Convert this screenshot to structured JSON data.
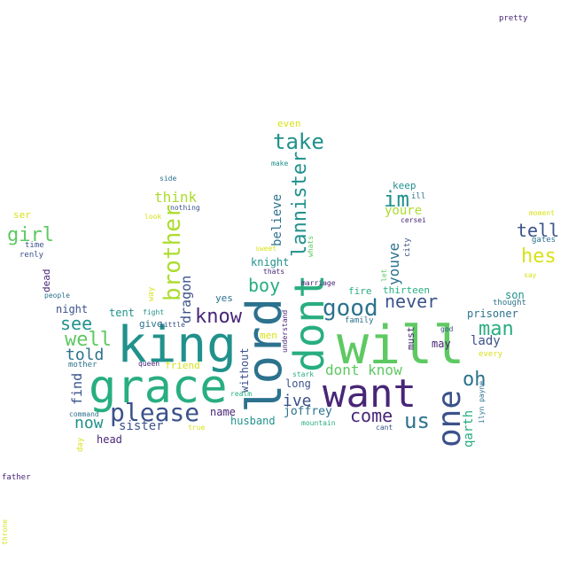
{
  "colors": {
    "dark_purple": "#482677",
    "indigo": "#3b528b",
    "blue": "#2c728e",
    "teal": "#21918c",
    "green_teal": "#28ae80",
    "green": "#5ec962",
    "lime": "#addc30",
    "yellow": "#d8e219"
  },
  "words": [
    {
      "text": "will",
      "color": "#5ec962"
    },
    {
      "text": "king",
      "color": "#21918c"
    },
    {
      "text": "grace",
      "color": "#28ae80"
    },
    {
      "text": "lord",
      "color": "#2c728e"
    },
    {
      "text": "dont",
      "color": "#28ae80"
    },
    {
      "text": "want",
      "color": "#482677"
    },
    {
      "text": "one",
      "color": "#3b528b"
    },
    {
      "text": "please",
      "color": "#3b528b"
    },
    {
      "text": "take",
      "color": "#21918c"
    },
    {
      "text": "lannister",
      "color": "#21918c"
    },
    {
      "text": "brother",
      "color": "#addc30"
    },
    {
      "text": "good",
      "color": "#2c728e"
    },
    {
      "text": "know",
      "color": "#482677"
    },
    {
      "text": "man",
      "color": "#28ae80"
    },
    {
      "text": "hes",
      "color": "#d8e219"
    },
    {
      "text": "tell",
      "color": "#3b528b"
    },
    {
      "text": "girl",
      "color": "#5ec962"
    },
    {
      "text": "im",
      "color": "#21918c"
    },
    {
      "text": "well",
      "color": "#5ec962"
    },
    {
      "text": "see",
      "color": "#21918c"
    },
    {
      "text": "oh",
      "color": "#2c728e"
    },
    {
      "text": "us",
      "color": "#2c728e"
    },
    {
      "text": "never",
      "color": "#3b528b"
    },
    {
      "text": "come",
      "color": "#482677"
    },
    {
      "text": "now",
      "color": "#21918c"
    },
    {
      "text": "told",
      "color": "#2c728e"
    },
    {
      "text": "boy",
      "color": "#28ae80"
    },
    {
      "text": "ive",
      "color": "#3b528b"
    },
    {
      "text": "youve",
      "color": "#2c728e"
    },
    {
      "text": "dont know",
      "color": "#5ec962"
    },
    {
      "text": "think",
      "color": "#addc30"
    },
    {
      "text": "dragon",
      "color": "#3b528b"
    },
    {
      "text": "youre",
      "color": "#addc30"
    },
    {
      "text": "sister",
      "color": "#3b528b"
    },
    {
      "text": "find",
      "color": "#3b528b"
    },
    {
      "text": "qarth",
      "color": "#28ae80"
    },
    {
      "text": "lady",
      "color": "#3b528b"
    },
    {
      "text": "believe",
      "color": "#2c728e"
    },
    {
      "text": "joffrey",
      "color": "#2c728e"
    },
    {
      "text": "knight",
      "color": "#21918c"
    },
    {
      "text": "prisoner",
      "color": "#2c728e"
    },
    {
      "text": "without",
      "color": "#3b528b"
    },
    {
      "text": "name",
      "color": "#482677"
    },
    {
      "text": "long",
      "color": "#3b528b"
    },
    {
      "text": "son",
      "color": "#21918c"
    },
    {
      "text": "may",
      "color": "#482677"
    },
    {
      "text": "husband",
      "color": "#21918c"
    },
    {
      "text": "head",
      "color": "#482677"
    },
    {
      "text": "tent",
      "color": "#21918c"
    },
    {
      "text": "night",
      "color": "#3b528b"
    },
    {
      "text": "keep",
      "color": "#21918c"
    },
    {
      "text": "even",
      "color": "#d8e219"
    },
    {
      "text": "ser",
      "color": "#d8e219"
    },
    {
      "text": "yes",
      "color": "#2c728e"
    },
    {
      "text": "fire",
      "color": "#28ae80"
    },
    {
      "text": "thirteen",
      "color": "#28ae80"
    },
    {
      "text": "friend",
      "color": "#d8e219"
    },
    {
      "text": "men",
      "color": "#d8e219"
    },
    {
      "text": "must",
      "color": "#482677"
    },
    {
      "text": "give",
      "color": "#2c728e"
    },
    {
      "text": "dead",
      "color": "#482677"
    },
    {
      "text": "gates",
      "color": "#2c728e"
    },
    {
      "text": "thought",
      "color": "#2c728e"
    },
    {
      "text": "family",
      "color": "#2c728e"
    },
    {
      "text": "renly",
      "color": "#3b528b"
    },
    {
      "text": "time",
      "color": "#3b528b"
    },
    {
      "text": "every",
      "color": "#d8e219"
    },
    {
      "text": "mother",
      "color": "#2c728e"
    },
    {
      "text": "day",
      "color": "#d8e219"
    },
    {
      "text": "city",
      "color": "#3b528b"
    },
    {
      "text": "ill",
      "color": "#2c728e"
    },
    {
      "text": "way",
      "color": "#d8e219"
    },
    {
      "text": "fight",
      "color": "#21918c"
    },
    {
      "text": "little",
      "color": "#3b528b"
    },
    {
      "text": "understand",
      "color": "#482677"
    },
    {
      "text": "stark",
      "color": "#28ae80"
    },
    {
      "text": "marriage",
      "color": "#482677"
    },
    {
      "text": "whats",
      "color": "#5ec962"
    },
    {
      "text": "let",
      "color": "#5ec962"
    },
    {
      "text": "cersei",
      "color": "#482677"
    },
    {
      "text": "side",
      "color": "#2c728e"
    },
    {
      "text": "nothing",
      "color": "#3b528b"
    },
    {
      "text": "look",
      "color": "#d8e219"
    },
    {
      "text": "make",
      "color": "#21918c"
    },
    {
      "text": "sweet",
      "color": "#d8e219"
    },
    {
      "text": "thats",
      "color": "#482677"
    },
    {
      "text": "moment",
      "color": "#d8e219"
    },
    {
      "text": "say",
      "color": "#d8e219"
    },
    {
      "text": "god",
      "color": "#3b528b"
    },
    {
      "text": "ilyn payne",
      "color": "#2c728e"
    },
    {
      "text": "cant",
      "color": "#3b528b"
    },
    {
      "text": "mountain",
      "color": "#28ae80"
    },
    {
      "text": "realm",
      "color": "#28ae80"
    },
    {
      "text": "true",
      "color": "#d8e219"
    },
    {
      "text": "command",
      "color": "#2c728e"
    },
    {
      "text": "queen",
      "color": "#482677"
    },
    {
      "text": "people",
      "color": "#2c728e"
    },
    {
      "text": "pretty",
      "color": "#482677"
    },
    {
      "text": "father",
      "color": "#482677"
    },
    {
      "text": "throne",
      "color": "#d8e219"
    }
  ]
}
